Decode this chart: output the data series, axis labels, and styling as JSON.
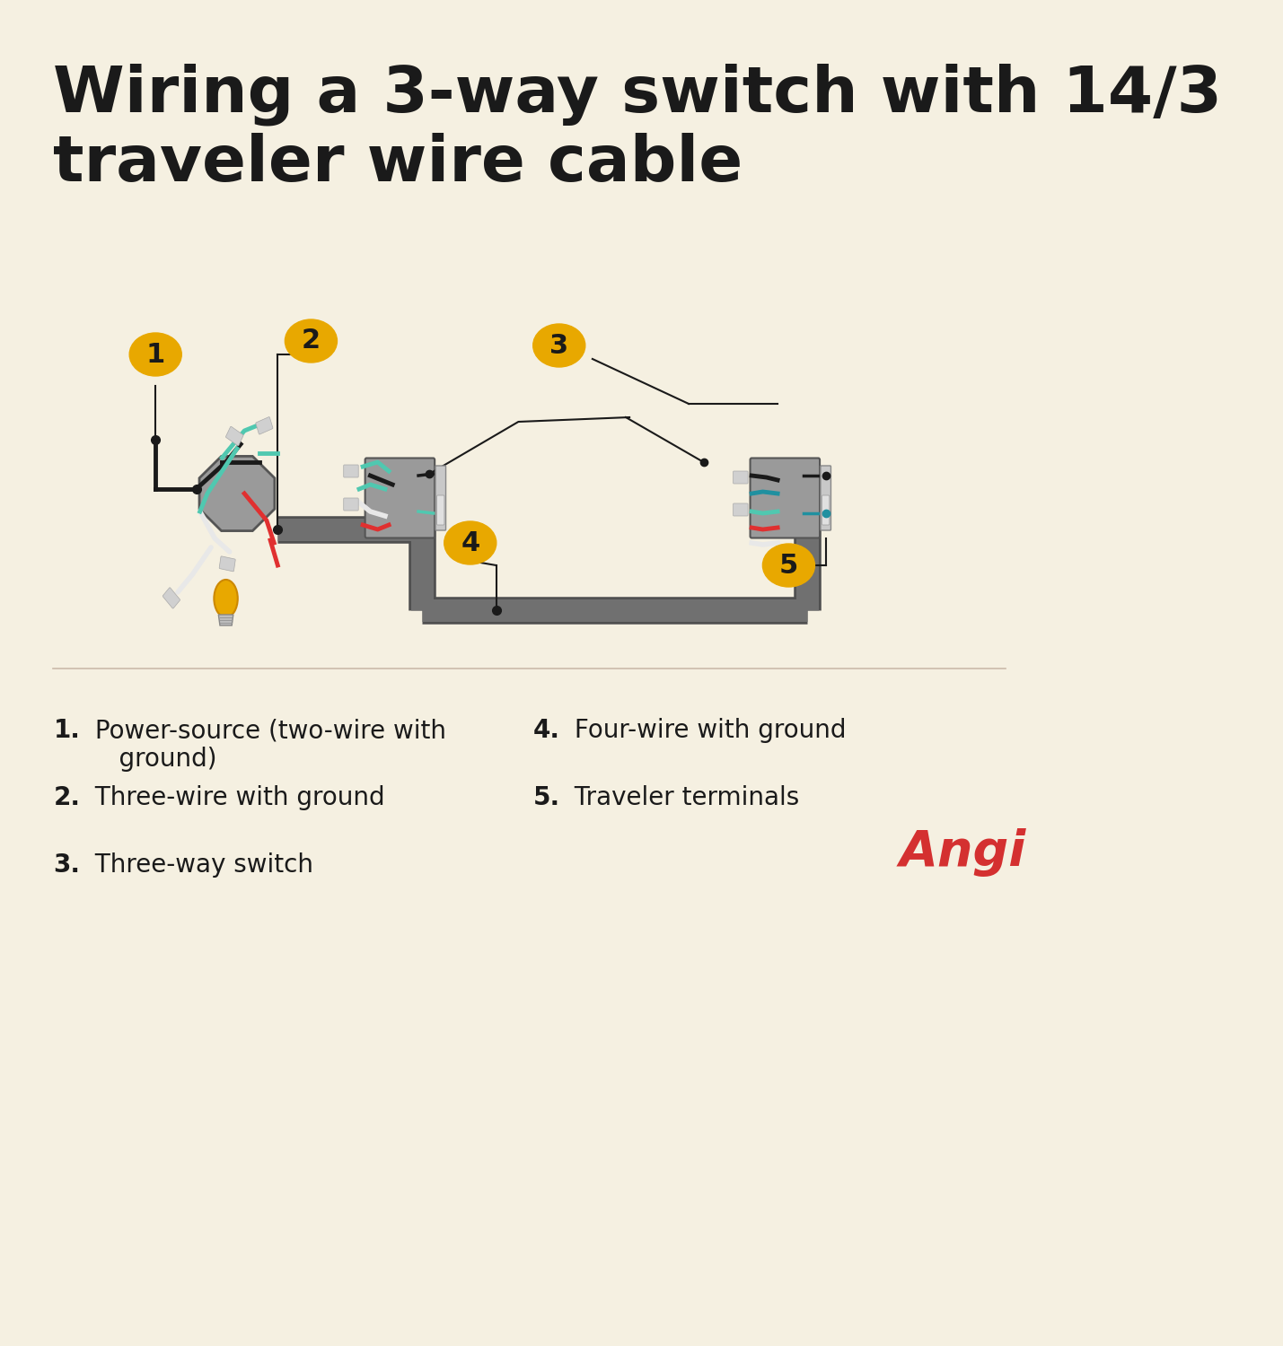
{
  "title": "Wiring a 3-way switch with 14/3\ntraveler wire cable",
  "bg_color": "#F5F0E1",
  "title_color": "#1a1a1a",
  "title_fontsize": 52,
  "legend_items": [
    {
      "num": "1",
      "bold_text": "1.",
      "rest_text": " Power-source (two-wire with\nground)"
    },
    {
      "num": "2",
      "bold_text": "2.",
      "rest_text": " Three-wire with ground"
    },
    {
      "num": "3",
      "bold_text": "3.",
      "rest_text": " Three-way switch"
    },
    {
      "num": "4",
      "bold_text": "4.",
      "rest_text": " Four-wire with ground"
    },
    {
      "num": "5",
      "bold_text": "5.",
      "rest_text": " Traveler terminals"
    }
  ],
  "badge_color": "#E8A800",
  "badge_text_color": "#1a1a1a",
  "wire_colors": {
    "black": "#1a1a1a",
    "white": "#e8e8e8",
    "red": "#e03030",
    "green": "#50c8b0",
    "teal": "#2090a0"
  },
  "box_color": "#9a9a9a",
  "conduit_color": "#707070",
  "angi_color": "#d43030"
}
